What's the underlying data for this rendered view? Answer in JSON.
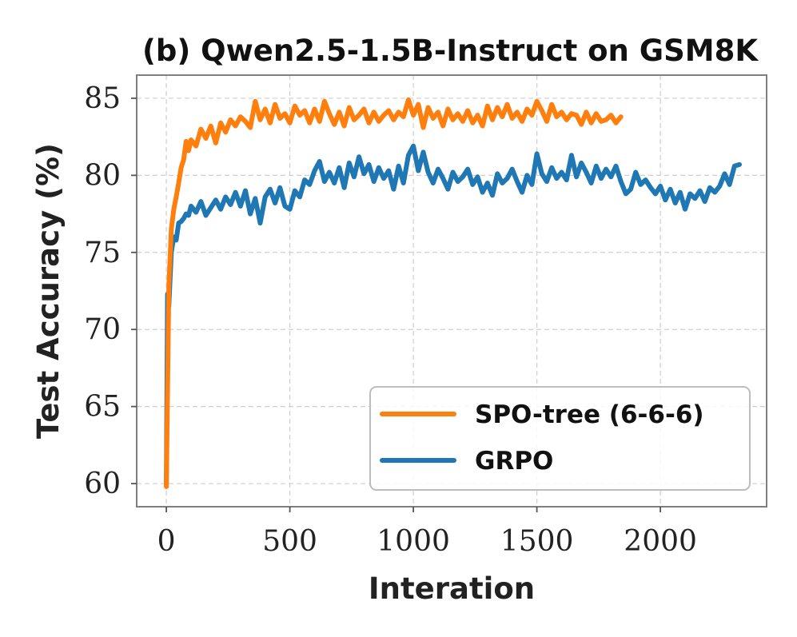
{
  "chart_data": {
    "type": "line",
    "title": "(b) Qwen2.5-1.5B-Instruct on GSM8K",
    "xlabel": "Interation",
    "ylabel": "Test Accuracy (%)",
    "xlim": [
      -120,
      2430
    ],
    "ylim": [
      58.5,
      86.5
    ],
    "xticks": [
      0,
      500,
      1000,
      1500,
      2000
    ],
    "yticks": [
      60,
      65,
      70,
      75,
      80,
      85
    ],
    "grid": true,
    "legend_position": "lower-right",
    "series": [
      {
        "name": "SPO-tree (6-6-6)",
        "color": "#ff7f0e",
        "x": [
          0,
          10,
          20,
          30,
          40,
          50,
          60,
          70,
          80,
          90,
          100,
          120,
          140,
          160,
          180,
          200,
          220,
          240,
          260,
          280,
          300,
          320,
          340,
          360,
          380,
          400,
          420,
          440,
          460,
          480,
          500,
          520,
          540,
          560,
          580,
          600,
          620,
          640,
          660,
          680,
          700,
          720,
          740,
          760,
          780,
          800,
          820,
          840,
          860,
          880,
          900,
          920,
          940,
          960,
          980,
          1000,
          1020,
          1040,
          1060,
          1080,
          1100,
          1120,
          1140,
          1160,
          1180,
          1200,
          1220,
          1240,
          1260,
          1280,
          1300,
          1320,
          1340,
          1360,
          1380,
          1400,
          1420,
          1440,
          1460,
          1480,
          1500,
          1520,
          1540,
          1560,
          1580,
          1600,
          1620,
          1640,
          1660,
          1680,
          1700,
          1720,
          1740,
          1760,
          1780,
          1800,
          1820,
          1840
        ],
        "values": [
          59.8,
          72.8,
          76.5,
          77.8,
          78.6,
          79.5,
          80.5,
          81.0,
          82.2,
          81.6,
          82.3,
          81.9,
          83.0,
          82.4,
          83.2,
          82.1,
          83.4,
          82.8,
          83.6,
          83.2,
          83.8,
          83.5,
          83.1,
          84.8,
          83.6,
          84.3,
          83.4,
          84.6,
          83.7,
          84.0,
          83.4,
          84.5,
          83.9,
          84.2,
          83.4,
          84.3,
          83.5,
          84.8,
          84.0,
          83.3,
          84.1,
          83.2,
          84.4,
          83.6,
          83.9,
          84.3,
          83.4,
          84.1,
          83.5,
          83.9,
          84.2,
          83.6,
          84.1,
          83.8,
          84.9,
          83.9,
          84.6,
          83.1,
          84.4,
          83.7,
          84.1,
          83.2,
          84.3,
          83.6,
          84.0,
          83.5,
          84.2,
          83.4,
          83.9,
          83.2,
          84.5,
          83.6,
          84.4,
          83.8,
          84.6,
          83.7,
          84.1,
          83.5,
          84.3,
          83.9,
          84.8,
          84.2,
          83.5,
          84.6,
          83.8,
          84.1,
          83.6,
          84.0,
          83.9,
          83.3,
          84.1,
          83.4,
          84.0,
          83.5,
          83.6,
          83.9,
          83.4,
          83.8
        ]
      },
      {
        "name": "GRPO",
        "color": "#1f77b4",
        "x": [
          0,
          5,
          10,
          20,
          30,
          40,
          50,
          60,
          70,
          80,
          90,
          100,
          120,
          140,
          160,
          180,
          200,
          220,
          240,
          260,
          280,
          300,
          320,
          340,
          360,
          380,
          400,
          420,
          440,
          460,
          480,
          500,
          520,
          540,
          560,
          580,
          600,
          620,
          640,
          660,
          680,
          700,
          720,
          740,
          760,
          780,
          800,
          820,
          840,
          860,
          880,
          900,
          920,
          940,
          960,
          980,
          1000,
          1020,
          1040,
          1060,
          1080,
          1100,
          1120,
          1140,
          1160,
          1180,
          1200,
          1220,
          1240,
          1260,
          1280,
          1300,
          1320,
          1340,
          1360,
          1380,
          1400,
          1420,
          1440,
          1460,
          1480,
          1500,
          1520,
          1540,
          1560,
          1580,
          1600,
          1620,
          1640,
          1660,
          1680,
          1700,
          1720,
          1740,
          1760,
          1780,
          1800,
          1820,
          1840,
          1860,
          1880,
          1900,
          1920,
          1940,
          1960,
          1980,
          2000,
          2020,
          2040,
          2060,
          2080,
          2100,
          2120,
          2140,
          2160,
          2180,
          2200,
          2220,
          2240,
          2260,
          2280,
          2300,
          2320
        ],
        "values": [
          60.0,
          72.3,
          71.5,
          75.0,
          76.0,
          75.8,
          76.9,
          77.0,
          77.2,
          77.5,
          77.4,
          78.0,
          77.6,
          78.3,
          77.4,
          77.9,
          78.4,
          77.8,
          78.6,
          78.1,
          78.9,
          78.0,
          79.0,
          77.5,
          78.5,
          76.9,
          78.6,
          79.1,
          78.2,
          79.2,
          78.0,
          77.8,
          79.0,
          78.6,
          79.7,
          79.4,
          80.3,
          80.9,
          79.6,
          80.2,
          79.5,
          80.5,
          79.2,
          80.8,
          79.9,
          81.2,
          80.1,
          80.7,
          79.6,
          80.5,
          79.8,
          80.3,
          79.1,
          80.6,
          79.5,
          81.3,
          81.9,
          80.3,
          81.5,
          80.2,
          79.5,
          80.4,
          79.8,
          79.1,
          80.2,
          79.6,
          79.9,
          80.4,
          79.4,
          79.9,
          78.9,
          79.5,
          78.7,
          80.1,
          79.5,
          79.8,
          80.4,
          79.6,
          78.9,
          80.0,
          79.4,
          81.4,
          80.1,
          79.6,
          80.5,
          79.8,
          80.2,
          79.7,
          81.3,
          79.9,
          80.8,
          80.2,
          79.5,
          80.6,
          79.8,
          80.4,
          79.9,
          80.6,
          79.6,
          78.8,
          79.1,
          80.2,
          79.4,
          79.7,
          79.2,
          78.8,
          79.3,
          78.4,
          79.1,
          78.2,
          78.9,
          77.8,
          78.8,
          78.5,
          79.0,
          78.3,
          79.2,
          78.9,
          79.3,
          80.1,
          79.4,
          80.6,
          80.7
        ]
      }
    ]
  }
}
